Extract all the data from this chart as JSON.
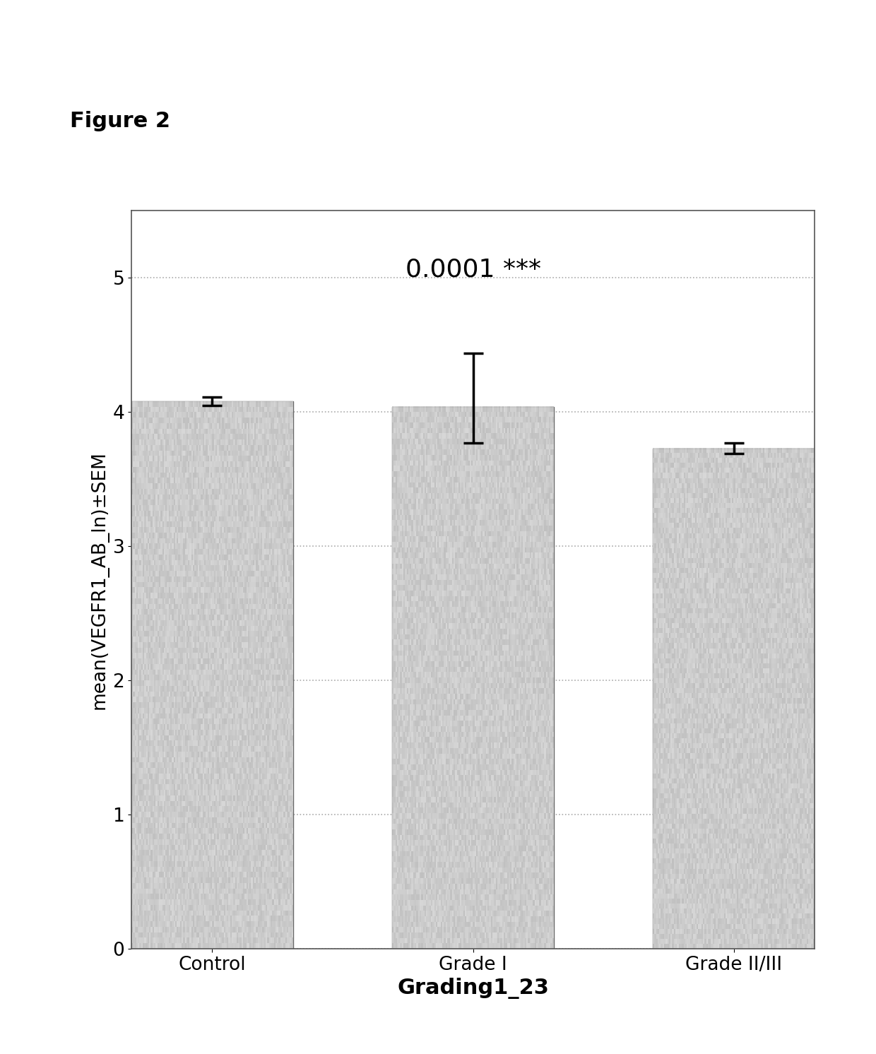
{
  "categories": [
    "Control",
    "Grade I",
    "Grade II/III"
  ],
  "values": [
    4.08,
    4.04,
    3.73
  ],
  "errors_lower": [
    0.03,
    0.27,
    0.04
  ],
  "errors_upper": [
    0.03,
    0.4,
    0.04
  ],
  "bar_color": "#c8c8c8",
  "bar_edgecolor": "#666666",
  "bar_linewidth": 1.0,
  "error_color": "black",
  "error_linewidth": 2.5,
  "error_capsize": 10,
  "error_capthick": 2.5,
  "ylabel": "mean(VEGFR1_AB_ln)±SEM",
  "xlabel": "Grading1_23",
  "figure_label": "Figure 2",
  "annotation_text": "0.0001 ***",
  "annotation_fontsize": 26,
  "ylim": [
    0,
    5.5
  ],
  "yticks": [
    0,
    1,
    2,
    3,
    4,
    5
  ],
  "grid_color": "#aaaaaa",
  "grid_linestyle": "dotted",
  "grid_linewidth": 1.2,
  "bar_width": 0.62,
  "figsize": [
    12.4,
    14.92
  ],
  "dpi": 100,
  "ylabel_fontsize": 19,
  "xlabel_fontsize": 22,
  "xtick_fontsize": 19,
  "ytick_fontsize": 19,
  "figure_label_fontsize": 22,
  "figure_label_fontweight": "bold",
  "spine_color": "#555555",
  "background_color": "#ffffff",
  "plot_bg_color": "#ffffff"
}
